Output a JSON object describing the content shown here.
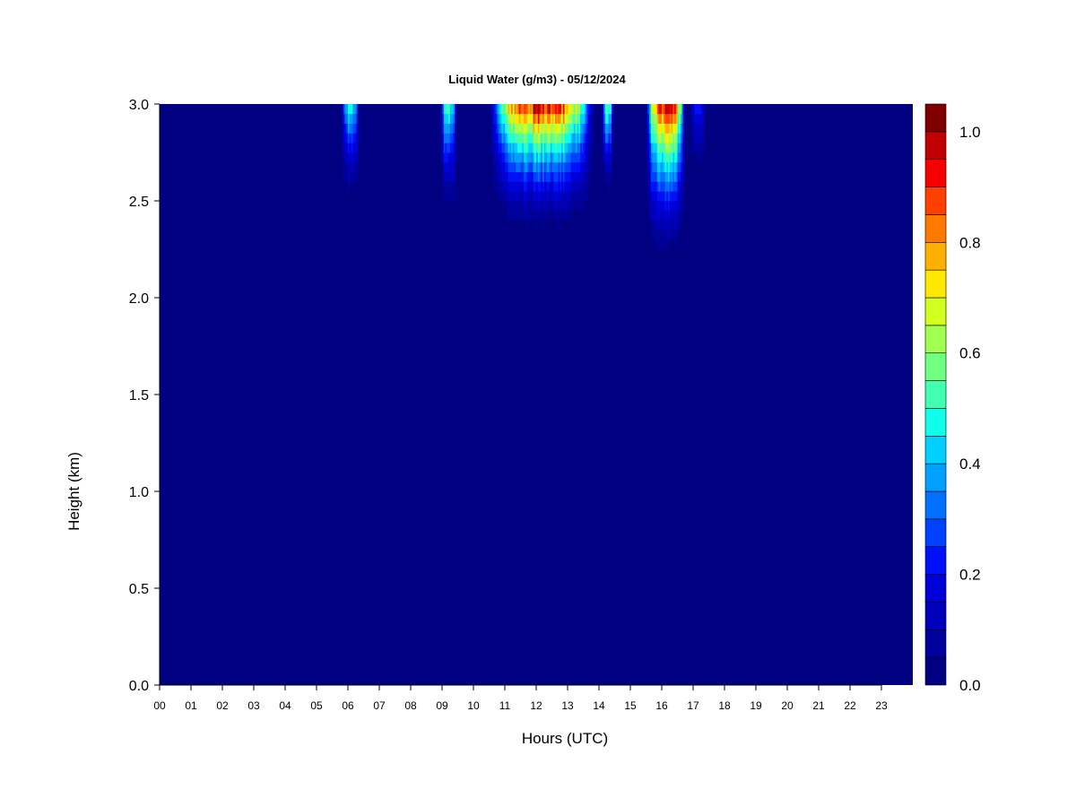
{
  "chart_data": {
    "type": "heatmap",
    "title": "Liquid Water (g/m3) - 05/12/2024",
    "xlabel": "Hours (UTC)",
    "ylabel": "Height (km)",
    "xlim": [
      0,
      24
    ],
    "ylim": [
      0,
      3.0
    ],
    "x_ticks": [
      "00",
      "01",
      "02",
      "03",
      "04",
      "05",
      "06",
      "07",
      "08",
      "09",
      "10",
      "11",
      "12",
      "13",
      "14",
      "15",
      "16",
      "17",
      "18",
      "19",
      "20",
      "21",
      "22",
      "23"
    ],
    "y_ticks": [
      "0.0",
      "0.5",
      "1.0",
      "1.5",
      "2.0",
      "2.5",
      "3.0"
    ],
    "colorbar": {
      "min": 0.0,
      "max": 1.05,
      "step": 0.05,
      "tick_labels": [
        "0.0",
        "0.2",
        "0.4",
        "0.6",
        "0.8",
        "1.0"
      ],
      "colors": [
        "#000080",
        "#00009C",
        "#0000BC",
        "#0000D8",
        "#0010F8",
        "#0040FF",
        "#0070FF",
        "#00A0FF",
        "#00D0FF",
        "#10FFE8",
        "#40FFB0",
        "#70FF80",
        "#A0FF50",
        "#D0FF20",
        "#FFE800",
        "#FFB000",
        "#FF7800",
        "#FF4000",
        "#F80000",
        "#C00000",
        "#800000"
      ]
    },
    "cloud_events": [
      {
        "start_hour": 5.8,
        "end_hour": 6.35,
        "peak_value": 0.5,
        "base_km": 2.4
      },
      {
        "start_hour": 8.95,
        "end_hour": 9.45,
        "peak_value": 0.55,
        "base_km": 2.3
      },
      {
        "start_hour": 10.5,
        "end_hour": 13.85,
        "peak_value": 1.0,
        "base_km": 2.25
      },
      {
        "start_hour": 14.1,
        "end_hour": 14.45,
        "peak_value": 0.6,
        "base_km": 2.4
      },
      {
        "start_hour": 15.5,
        "end_hour": 16.75,
        "peak_value": 1.0,
        "base_km": 2.1
      },
      {
        "start_hour": 16.9,
        "end_hour": 17.4,
        "peak_value": 0.25,
        "base_km": 2.5
      }
    ]
  }
}
